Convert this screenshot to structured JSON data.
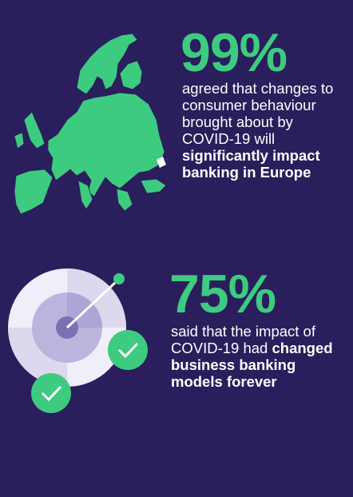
{
  "stats": [
    {
      "value": "99%",
      "text": [
        {
          "t": "agreed that changes to consumer behaviour brought about by COVID-19 will ",
          "bold": false
        },
        {
          "t": "significantly impact banking in Europe",
          "bold": true
        }
      ]
    },
    {
      "value": "75%",
      "text": [
        {
          "t": "said that the impact of COVID-19 had ",
          "bold": false
        },
        {
          "t": "changed business banking models forever",
          "bold": true
        }
      ]
    }
  ]
}
